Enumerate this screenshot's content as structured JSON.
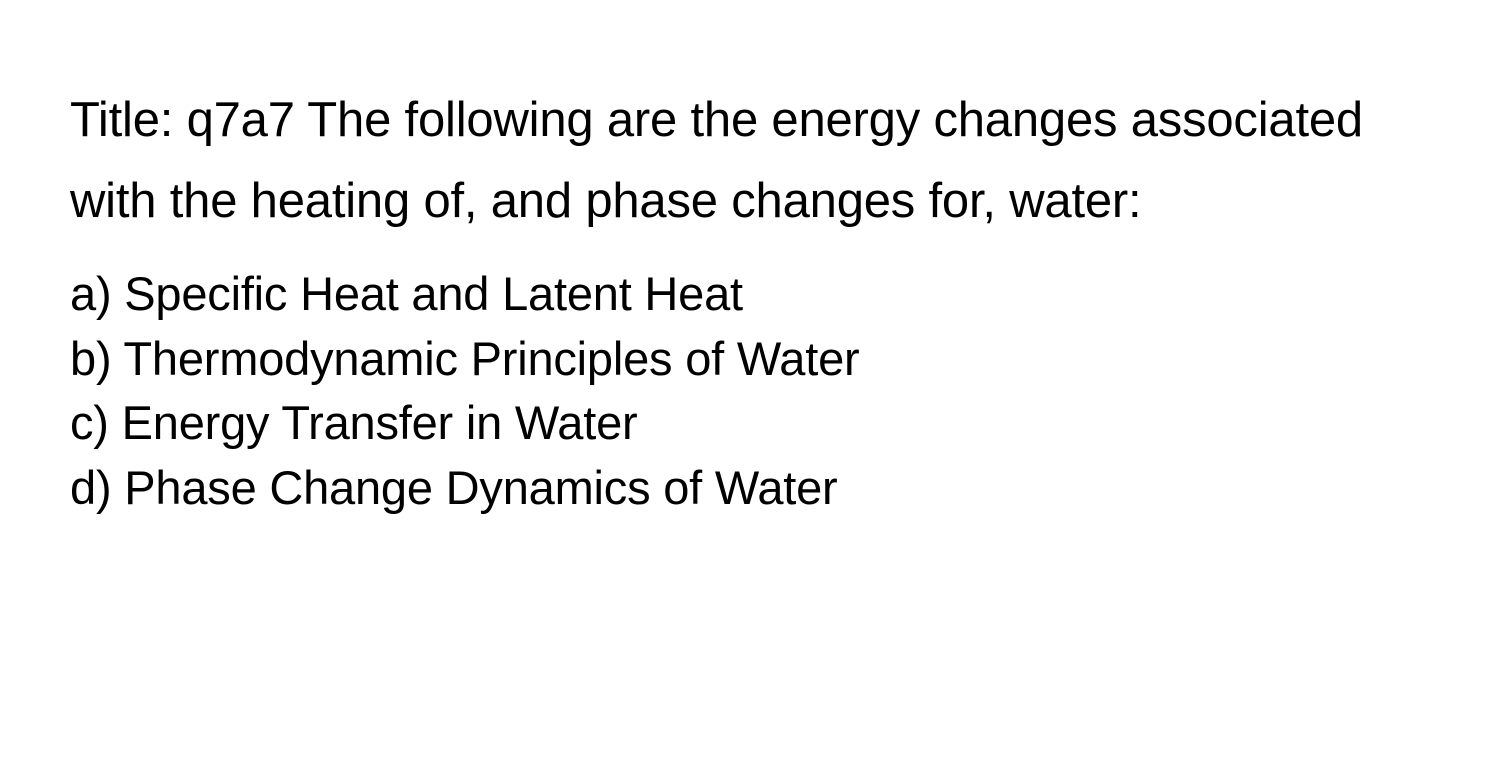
{
  "colors": {
    "background": "#ffffff",
    "text": "#000000"
  },
  "typography": {
    "title_fontsize": 49,
    "option_fontsize": 47,
    "font_weight": 400,
    "title_line_height": 1.65,
    "option_line_height": 1.38
  },
  "title": "Title: q7a7 The following are the energy changes associated with the heating of, and phase changes for, water:",
  "options": [
    {
      "label": "a)",
      "text": "Specific Heat and Latent Heat"
    },
    {
      "label": "b)",
      "text": "Thermodynamic Principles of Water"
    },
    {
      "label": "c)",
      "text": "Energy Transfer in Water"
    },
    {
      "label": "d)",
      "text": "Phase Change Dynamics of Water"
    }
  ]
}
